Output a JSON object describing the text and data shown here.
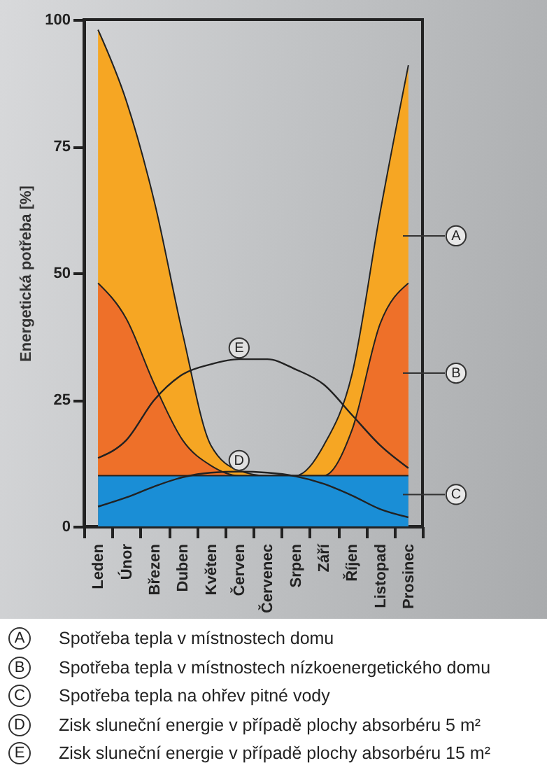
{
  "chart_data": {
    "type": "area",
    "ylabel": "Energetická potřeba [%]",
    "categories": [
      "Leden",
      "Únor",
      "Březen",
      "Duben",
      "Květen",
      "Červen",
      "Červenec",
      "Srpen",
      "Září",
      "Říjen",
      "Listopad",
      "Prosinec"
    ],
    "ylim": [
      0,
      100
    ],
    "yticks": [
      0,
      25,
      50,
      75,
      100
    ],
    "grid": false,
    "series": [
      {
        "name": "A",
        "type": "area",
        "color": "#f6a623",
        "values": [
          98,
          84,
          64,
          38,
          16,
          11,
          10,
          10,
          16,
          30,
          62,
          91
        ]
      },
      {
        "name": "B",
        "type": "area",
        "color": "#ee7029",
        "values": [
          48,
          41,
          28,
          17,
          12,
          10,
          10,
          10,
          10,
          19,
          40,
          48
        ]
      },
      {
        "name": "C",
        "type": "area",
        "color": "#1a8ed6",
        "values": [
          10,
          10,
          10,
          10,
          10,
          10,
          10,
          10,
          10,
          10,
          10,
          10
        ]
      },
      {
        "name": "D",
        "type": "line",
        "color": "#222222",
        "values": [
          3.9,
          5.7,
          7.9,
          9.7,
          10.6,
          10.8,
          10.6,
          9.9,
          8.4,
          6.1,
          3.4,
          1.8
        ]
      },
      {
        "name": "E",
        "type": "line",
        "color": "#222222",
        "values": [
          13.5,
          17,
          25,
          30,
          32,
          33,
          33,
          31,
          28,
          22,
          16,
          11.5
        ]
      }
    ],
    "annotations": [
      "Spotřeba tepla v místnostech domu",
      "Spotřeba tepla v místnostech nízkoenergetického domu",
      "Spotřeba tepla na ohřev pitné vody",
      "Zisk sluneční energie v případě plochy absorbéru 5 m²",
      "Zisk sluneční energie v případě plochy absorbéru 15 m²"
    ]
  }
}
